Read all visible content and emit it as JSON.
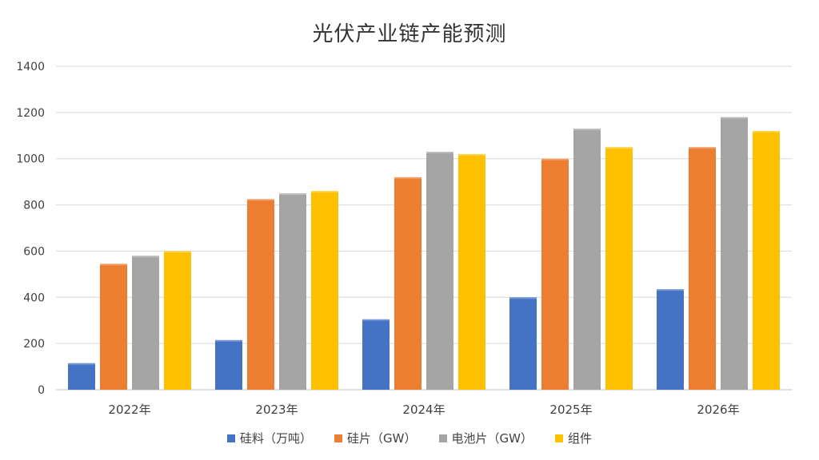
{
  "chart_data": {
    "type": "bar",
    "title": "光伏产业链产能预测",
    "categories": [
      "2022年",
      "2023年",
      "2024年",
      "2025年",
      "2026年"
    ],
    "ylim": [
      0,
      1400
    ],
    "yticks": [
      0,
      200,
      400,
      600,
      800,
      1000,
      1200,
      1400
    ],
    "grid": true,
    "legend_position": "bottom",
    "series": [
      {
        "name": "硅料（万吨）",
        "values": [
          115,
          215,
          305,
          400,
          435
        ],
        "color": "#4472C4"
      },
      {
        "name": "硅片（GW）",
        "values": [
          545,
          825,
          920,
          1000,
          1050
        ],
        "color": "#ED7D31"
      },
      {
        "name": "电池片（GW）",
        "values": [
          580,
          850,
          1030,
          1130,
          1180
        ],
        "color": "#A5A5A5"
      },
      {
        "name": "组件",
        "values": [
          600,
          860,
          1020,
          1050,
          1120
        ],
        "color": "#FFC000"
      }
    ]
  }
}
